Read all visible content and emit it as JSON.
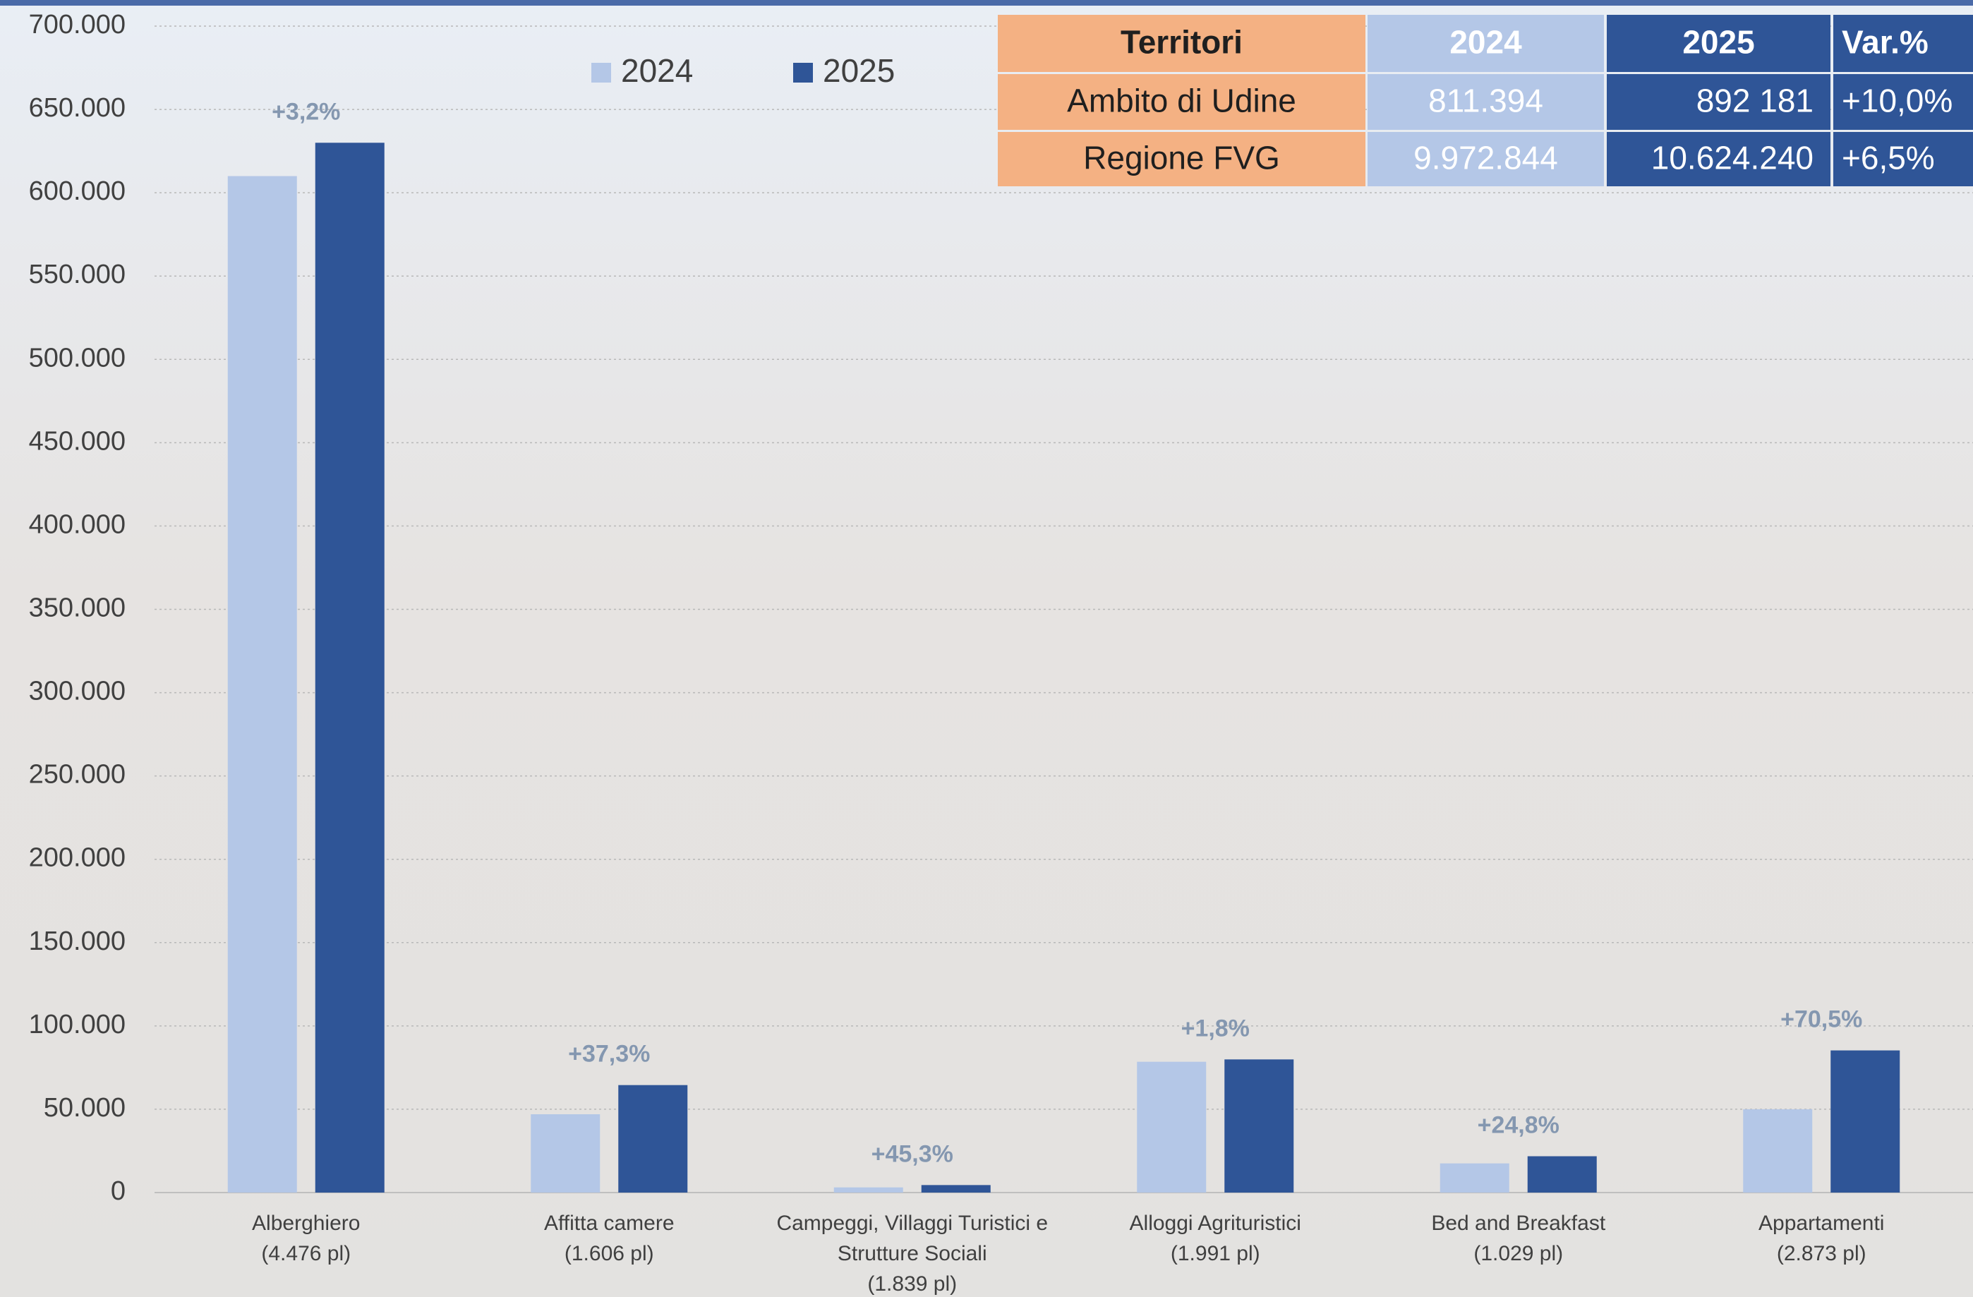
{
  "chart_data": {
    "type": "bar",
    "categories": [
      [
        "Alberghiero",
        "(4.476 pl)"
      ],
      [
        "Affitta camere",
        "(1.606 pl)"
      ],
      [
        "Campeggi, Villaggi Turistici e",
        "Strutture Sociali",
        "(1.839 pl)"
      ],
      [
        "Alloggi Agrituristici",
        "(1.991 pl)"
      ],
      [
        "Bed and Breakfast",
        "(1.029 pl)"
      ],
      [
        "Appartamenti",
        "(2.873 pl)"
      ]
    ],
    "series": [
      {
        "name": "2024",
        "color": "#b4c7e7",
        "values": [
          610000,
          47000,
          3100,
          78500,
          17500,
          50000
        ]
      },
      {
        "name": "2025",
        "color": "#2f5597",
        "values": [
          630000,
          64500,
          4500,
          79900,
          21800,
          85300
        ]
      }
    ],
    "annotations": [
      "+3,2%",
      "+37,3%",
      "+45,3%",
      "+1,8%",
      "+24,8%",
      "+70,5%"
    ],
    "ylim": [
      0,
      700000
    ],
    "yticks": [
      0,
      {
        "value": 50000,
        "label": "50.000"
      },
      {
        "value": 100000,
        "label": "100.000"
      },
      {
        "value": 150000,
        "label": "150.000"
      },
      {
        "value": 200000,
        "label": "200.000"
      },
      {
        "value": 250000,
        "label": "250.000"
      },
      {
        "value": 300000,
        "label": "300.000"
      },
      {
        "value": 350000,
        "label": "350.000"
      },
      {
        "value": 400000,
        "label": "400.000"
      },
      {
        "value": 450000,
        "label": "450.000"
      },
      {
        "value": 500000,
        "label": "500.000"
      },
      {
        "value": 550000,
        "label": "550.000"
      },
      {
        "value": 600000,
        "label": "600.000"
      },
      {
        "value": 650000,
        "label": "650.000"
      },
      {
        "value": 700000,
        "label": "700.000"
      }
    ],
    "grid": true,
    "legend": "top"
  },
  "table": {
    "header": [
      "Territori",
      "2024",
      "2025",
      "Var.%"
    ],
    "rows": [
      [
        "Ambito di Udine",
        "811.394",
        "892 181",
        "+10,0%"
      ],
      [
        "Regione FVG",
        "9.972.844",
        "10.624.240",
        "+6,5%"
      ]
    ]
  }
}
